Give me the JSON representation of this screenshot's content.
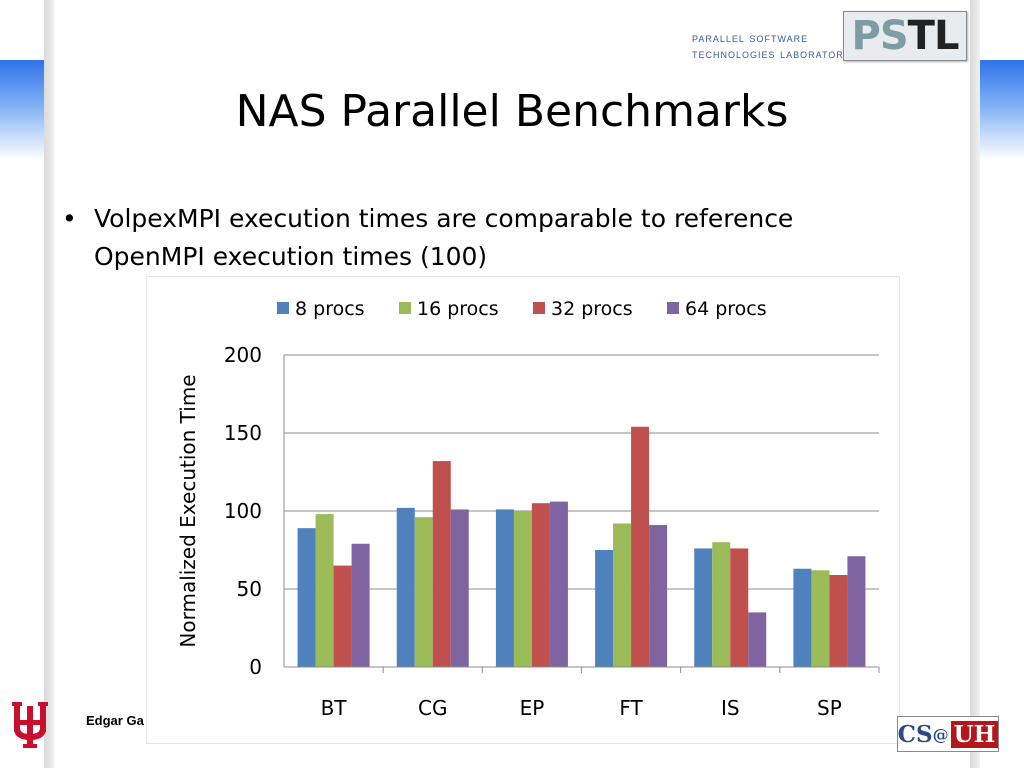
{
  "header": {
    "lab_line1": "Parallel Software",
    "lab_line2": "Technologies Laboratory",
    "logo_text": "PSTL"
  },
  "slide": {
    "title": "NAS Parallel Benchmarks",
    "bullet": "VolpexMPI execution times are comparable to reference OpenMPI execution times (100)",
    "bullet_marker": "•"
  },
  "footer": {
    "author": "Edgar Ga",
    "csuh_logo": {
      "cs": "CS",
      "at": "@",
      "uh": "UH"
    }
  },
  "colors": {
    "band": "#2f72e8",
    "uh_red": "#c8102e"
  },
  "chart_data": {
    "type": "bar",
    "title": "",
    "xlabel": "",
    "ylabel": "Normalized Execution Time",
    "categories": [
      "BT",
      "CG",
      "EP",
      "FT",
      "IS",
      "SP"
    ],
    "ylim": [
      0,
      200
    ],
    "yticks": [
      0,
      50,
      100,
      150,
      200
    ],
    "grid": true,
    "legend_position": "top",
    "series": [
      {
        "name": "8 procs",
        "color": "#4f81bd",
        "values": [
          89,
          102,
          101,
          75,
          76,
          63
        ]
      },
      {
        "name": "16 procs",
        "color": "#9bbb59",
        "values": [
          98,
          96,
          100,
          92,
          80,
          62
        ]
      },
      {
        "name": "32 procs",
        "color": "#c0504d",
        "values": [
          65,
          132,
          105,
          154,
          76,
          59
        ]
      },
      {
        "name": "64 procs",
        "color": "#8064a2",
        "values": [
          79,
          101,
          106,
          91,
          35,
          71
        ]
      }
    ]
  }
}
